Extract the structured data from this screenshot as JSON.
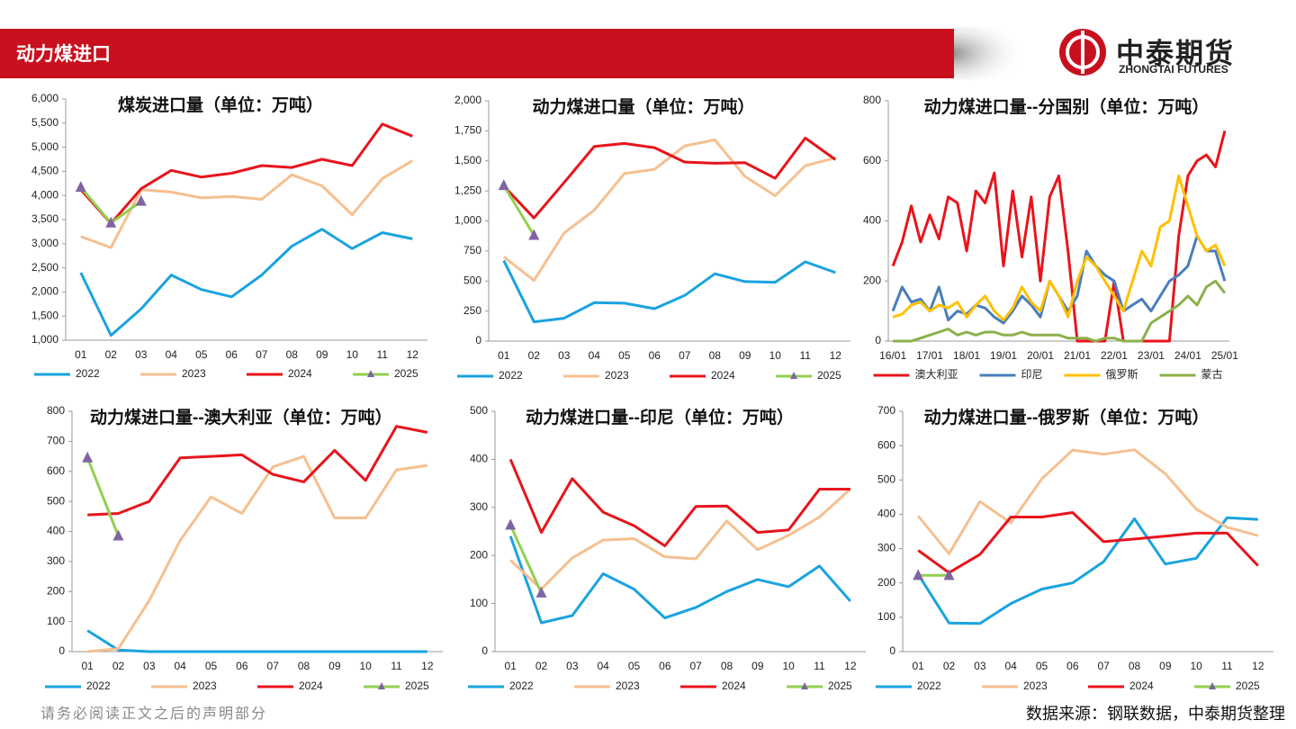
{
  "header": {
    "title": "动力煤进口",
    "logo_cn": "中泰期货",
    "logo_en": "ZHONGTAI FUTURES"
  },
  "footer": {
    "disclaimer": "请务必阅读正文之后的声明部分",
    "source": "数据来源：钢联数据，中泰期货整理"
  },
  "chart_data": [
    {
      "type": "line",
      "title": "煤炭进口量（单位：万吨）",
      "categories": [
        "01",
        "02",
        "03",
        "04",
        "05",
        "06",
        "07",
        "08",
        "09",
        "10",
        "11",
        "12"
      ],
      "ylim": [
        1000,
        6000
      ],
      "yticks": [
        {
          "value": 1000,
          "label": "1,000"
        },
        {
          "value": 1500,
          "label": "1,500"
        },
        {
          "value": 2000,
          "label": "2,000"
        },
        {
          "value": 2500,
          "label": "2,500"
        },
        {
          "value": 3000,
          "label": "3,000"
        },
        {
          "value": 3500,
          "label": "3,500"
        },
        {
          "value": 4000,
          "label": "4,000"
        },
        {
          "value": 4500,
          "label": "4,500"
        },
        {
          "value": 5000,
          "label": "5,000"
        },
        {
          "value": 5500,
          "label": "5,500"
        },
        {
          "value": 6000,
          "label": "6,000"
        }
      ],
      "legend": "bottom",
      "series": [
        {
          "name": "2022",
          "color": "#1aa3e0",
          "values": [
            2400,
            1100,
            1650,
            2350,
            2050,
            1900,
            2350,
            2950,
            3300,
            2900,
            3230,
            3100
          ]
        },
        {
          "name": "2023",
          "color": "#f5c08f",
          "values": [
            3150,
            2920,
            4120,
            4070,
            3950,
            3980,
            3920,
            4430,
            4200,
            3600,
            4350,
            4720
          ]
        },
        {
          "name": "2024",
          "color": "#e8141c",
          "values": [
            4120,
            3420,
            4140,
            4520,
            4380,
            4460,
            4620,
            4580,
            4750,
            4620,
            5480,
            5230
          ]
        },
        {
          "name": "2025",
          "color": "#92d050",
          "marker": "triangle",
          "marker_color": "#8064a2",
          "values": [
            4170,
            3430,
            3880,
            null,
            null,
            null,
            null,
            null,
            null,
            null,
            null,
            null
          ]
        }
      ]
    },
    {
      "type": "line",
      "title": "动力煤进口量（单位：万吨）",
      "categories": [
        "01",
        "02",
        "03",
        "04",
        "05",
        "06",
        "07",
        "08",
        "09",
        "10",
        "11",
        "12"
      ],
      "ylim": [
        0,
        2000
      ],
      "yticks": [
        0,
        250,
        500,
        750,
        {
          "value": 1000,
          "label": "1,000"
        },
        {
          "value": 1250,
          "label": "1,250"
        },
        {
          "value": 1500,
          "label": "1,500"
        },
        {
          "value": 1750,
          "label": "1,750"
        },
        {
          "value": 2000,
          "label": "2,000"
        }
      ],
      "legend": "bottom",
      "series": [
        {
          "name": "2022",
          "color": "#1aa3e0",
          "values": [
            670,
            160,
            190,
            320,
            315,
            270,
            380,
            560,
            495,
            490,
            660,
            570
          ]
        },
        {
          "name": "2023",
          "color": "#f5c08f",
          "values": [
            700,
            505,
            900,
            1090,
            1395,
            1430,
            1625,
            1675,
            1370,
            1210,
            1460,
            1525
          ]
        },
        {
          "name": "2024",
          "color": "#e8141c",
          "values": [
            1290,
            1025,
            1320,
            1620,
            1645,
            1610,
            1490,
            1480,
            1485,
            1355,
            1690,
            1510
          ]
        },
        {
          "name": "2025",
          "color": "#92d050",
          "marker": "triangle",
          "marker_color": "#8064a2",
          "values": [
            1295,
            880,
            null,
            null,
            null,
            null,
            null,
            null,
            null,
            null,
            null,
            null
          ]
        }
      ]
    },
    {
      "type": "line",
      "title": "动力煤进口量--分国别（单位：万吨）",
      "categories": [
        "16/01",
        null,
        null,
        null,
        "17/01",
        null,
        null,
        null,
        "18/01",
        null,
        null,
        null,
        "19/01",
        null,
        null,
        null,
        "20/01",
        null,
        null,
        null,
        "21/01",
        null,
        null,
        null,
        "22/01",
        null,
        null,
        null,
        "23/01",
        null,
        null,
        null,
        "24/01",
        null,
        null,
        null,
        "25/01"
      ],
      "ylim": [
        0,
        800
      ],
      "yticks": [
        0,
        200,
        400,
        600,
        800
      ],
      "legend": "bottom",
      "series": [
        {
          "name": "澳大利亚",
          "color": "#e8141c",
          "values": [
            250,
            330,
            450,
            330,
            420,
            340,
            480,
            460,
            300,
            500,
            460,
            560,
            250,
            500,
            280,
            480,
            200,
            480,
            550,
            300,
            0,
            0,
            0,
            0,
            200,
            0,
            0,
            0,
            0,
            0,
            0,
            350,
            550,
            600,
            620,
            580,
            700
          ]
        },
        {
          "name": "印尼",
          "color": "#4a7ebb",
          "values": [
            100,
            180,
            130,
            140,
            100,
            180,
            70,
            100,
            90,
            120,
            110,
            80,
            60,
            100,
            150,
            120,
            80,
            200,
            150,
            100,
            150,
            300,
            250,
            220,
            200,
            100,
            120,
            140,
            100,
            150,
            200,
            220,
            250,
            350,
            300,
            300,
            200
          ]
        },
        {
          "name": "俄罗斯",
          "color": "#ffc000",
          "values": [
            80,
            90,
            120,
            130,
            100,
            120,
            110,
            130,
            80,
            120,
            150,
            100,
            70,
            110,
            180,
            130,
            100,
            200,
            150,
            80,
            200,
            280,
            250,
            200,
            150,
            100,
            200,
            300,
            250,
            380,
            400,
            550,
            450,
            350,
            300,
            320,
            250
          ]
        },
        {
          "name": "蒙古",
          "color": "#8cb04a",
          "values": [
            0,
            0,
            0,
            10,
            20,
            30,
            40,
            20,
            30,
            20,
            30,
            30,
            20,
            20,
            30,
            20,
            20,
            20,
            20,
            10,
            10,
            10,
            0,
            10,
            10,
            0,
            0,
            0,
            60,
            80,
            100,
            120,
            150,
            120,
            180,
            200,
            160
          ]
        }
      ]
    },
    {
      "type": "line",
      "title": "动力煤进口量--澳大利亚（单位：万吨）",
      "categories": [
        "01",
        "02",
        "03",
        "04",
        "05",
        "06",
        "07",
        "08",
        "09",
        "10",
        "11",
        "12"
      ],
      "ylim": [
        0,
        800
      ],
      "yticks": [
        0,
        100,
        200,
        300,
        400,
        500,
        600,
        700,
        800
      ],
      "legend": "bottom",
      "series": [
        {
          "name": "2022",
          "color": "#1aa3e0",
          "values": [
            70,
            5,
            0,
            0,
            0,
            0,
            0,
            0,
            0,
            0,
            0,
            0
          ]
        },
        {
          "name": "2023",
          "color": "#f5c08f",
          "values": [
            0,
            10,
            170,
            370,
            515,
            460,
            615,
            650,
            445,
            445,
            605,
            620
          ]
        },
        {
          "name": "2024",
          "color": "#e8141c",
          "values": [
            455,
            460,
            500,
            645,
            650,
            655,
            590,
            565,
            670,
            570,
            750,
            730
          ]
        },
        {
          "name": "2025",
          "color": "#92d050",
          "marker": "triangle",
          "marker_color": "#8064a2",
          "values": [
            645,
            385,
            null,
            null,
            null,
            null,
            null,
            null,
            null,
            null,
            null,
            null
          ]
        }
      ]
    },
    {
      "type": "line",
      "title": "动力煤进口量--印尼（单位：万吨）",
      "categories": [
        "01",
        "02",
        "03",
        "04",
        "05",
        "06",
        "07",
        "08",
        "09",
        "10",
        "11",
        "12"
      ],
      "ylim": [
        0,
        500
      ],
      "yticks": [
        0,
        100,
        200,
        300,
        400,
        500
      ],
      "legend": "bottom",
      "series": [
        {
          "name": "2022",
          "color": "#1aa3e0",
          "values": [
            240,
            60,
            75,
            162,
            130,
            70,
            92,
            125,
            150,
            135,
            178,
            105
          ]
        },
        {
          "name": "2023",
          "color": "#f5c08f",
          "values": [
            190,
            130,
            195,
            232,
            235,
            197,
            193,
            272,
            212,
            242,
            280,
            338
          ]
        },
        {
          "name": "2024",
          "color": "#e8141c",
          "values": [
            400,
            248,
            360,
            290,
            262,
            220,
            302,
            303,
            248,
            253,
            338,
            338
          ]
        },
        {
          "name": "2025",
          "color": "#92d050",
          "marker": "triangle",
          "marker_color": "#8064a2",
          "values": [
            263,
            122,
            null,
            null,
            null,
            null,
            null,
            null,
            null,
            null,
            null,
            null
          ]
        }
      ]
    },
    {
      "type": "line",
      "title": "动力煤进口量--俄罗斯（单位：万吨）",
      "categories": [
        "01",
        "02",
        "03",
        "04",
        "05",
        "06",
        "07",
        "08",
        "09",
        "10",
        "11",
        "12"
      ],
      "ylim": [
        0,
        700
      ],
      "yticks": [
        0,
        100,
        200,
        300,
        400,
        500,
        600,
        700
      ],
      "legend": "bottom",
      "series": [
        {
          "name": "2022",
          "color": "#1aa3e0",
          "values": [
            225,
            83,
            82,
            140,
            182,
            200,
            262,
            387,
            255,
            272,
            390,
            385
          ]
        },
        {
          "name": "2023",
          "color": "#f5c08f",
          "values": [
            395,
            285,
            437,
            375,
            503,
            587,
            575,
            588,
            518,
            415,
            362,
            338
          ]
        },
        {
          "name": "2024",
          "color": "#e8141c",
          "values": [
            295,
            230,
            283,
            392,
            392,
            405,
            320,
            328,
            336,
            345,
            345,
            250
          ]
        },
        {
          "name": "2025",
          "color": "#92d050",
          "marker": "triangle",
          "marker_color": "#8064a2",
          "values": [
            222,
            222,
            null,
            null,
            null,
            null,
            null,
            null,
            null,
            null,
            null,
            null
          ]
        }
      ]
    }
  ]
}
